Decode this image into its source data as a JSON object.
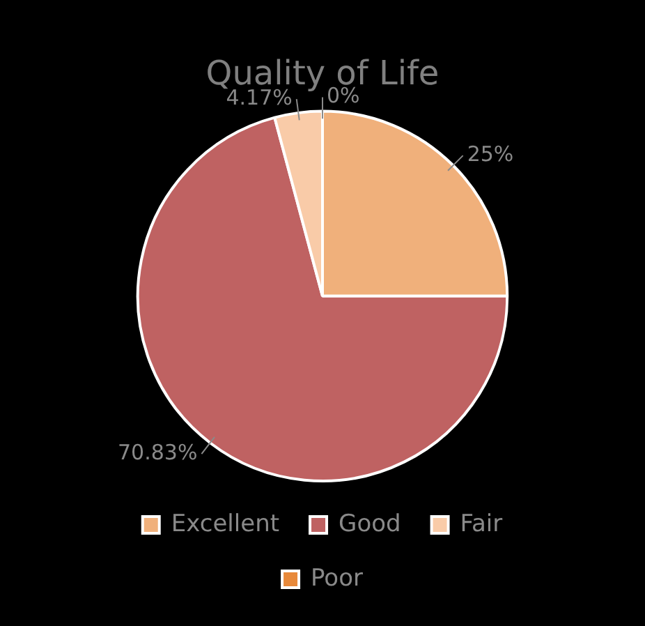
{
  "chart_data": {
    "type": "pie",
    "title": "Quality of Life",
    "categories": [
      "Excellent",
      "Good",
      "Fair",
      "Poor"
    ],
    "values": [
      25,
      70.83,
      4.17,
      0
    ],
    "value_labels": [
      "25%",
      "70.83%",
      "4.17%",
      "0%"
    ],
    "colors": [
      "#f0b07b",
      "#bf6262",
      "#f9cba8",
      "#e8893a"
    ],
    "legend": "bottom"
  }
}
